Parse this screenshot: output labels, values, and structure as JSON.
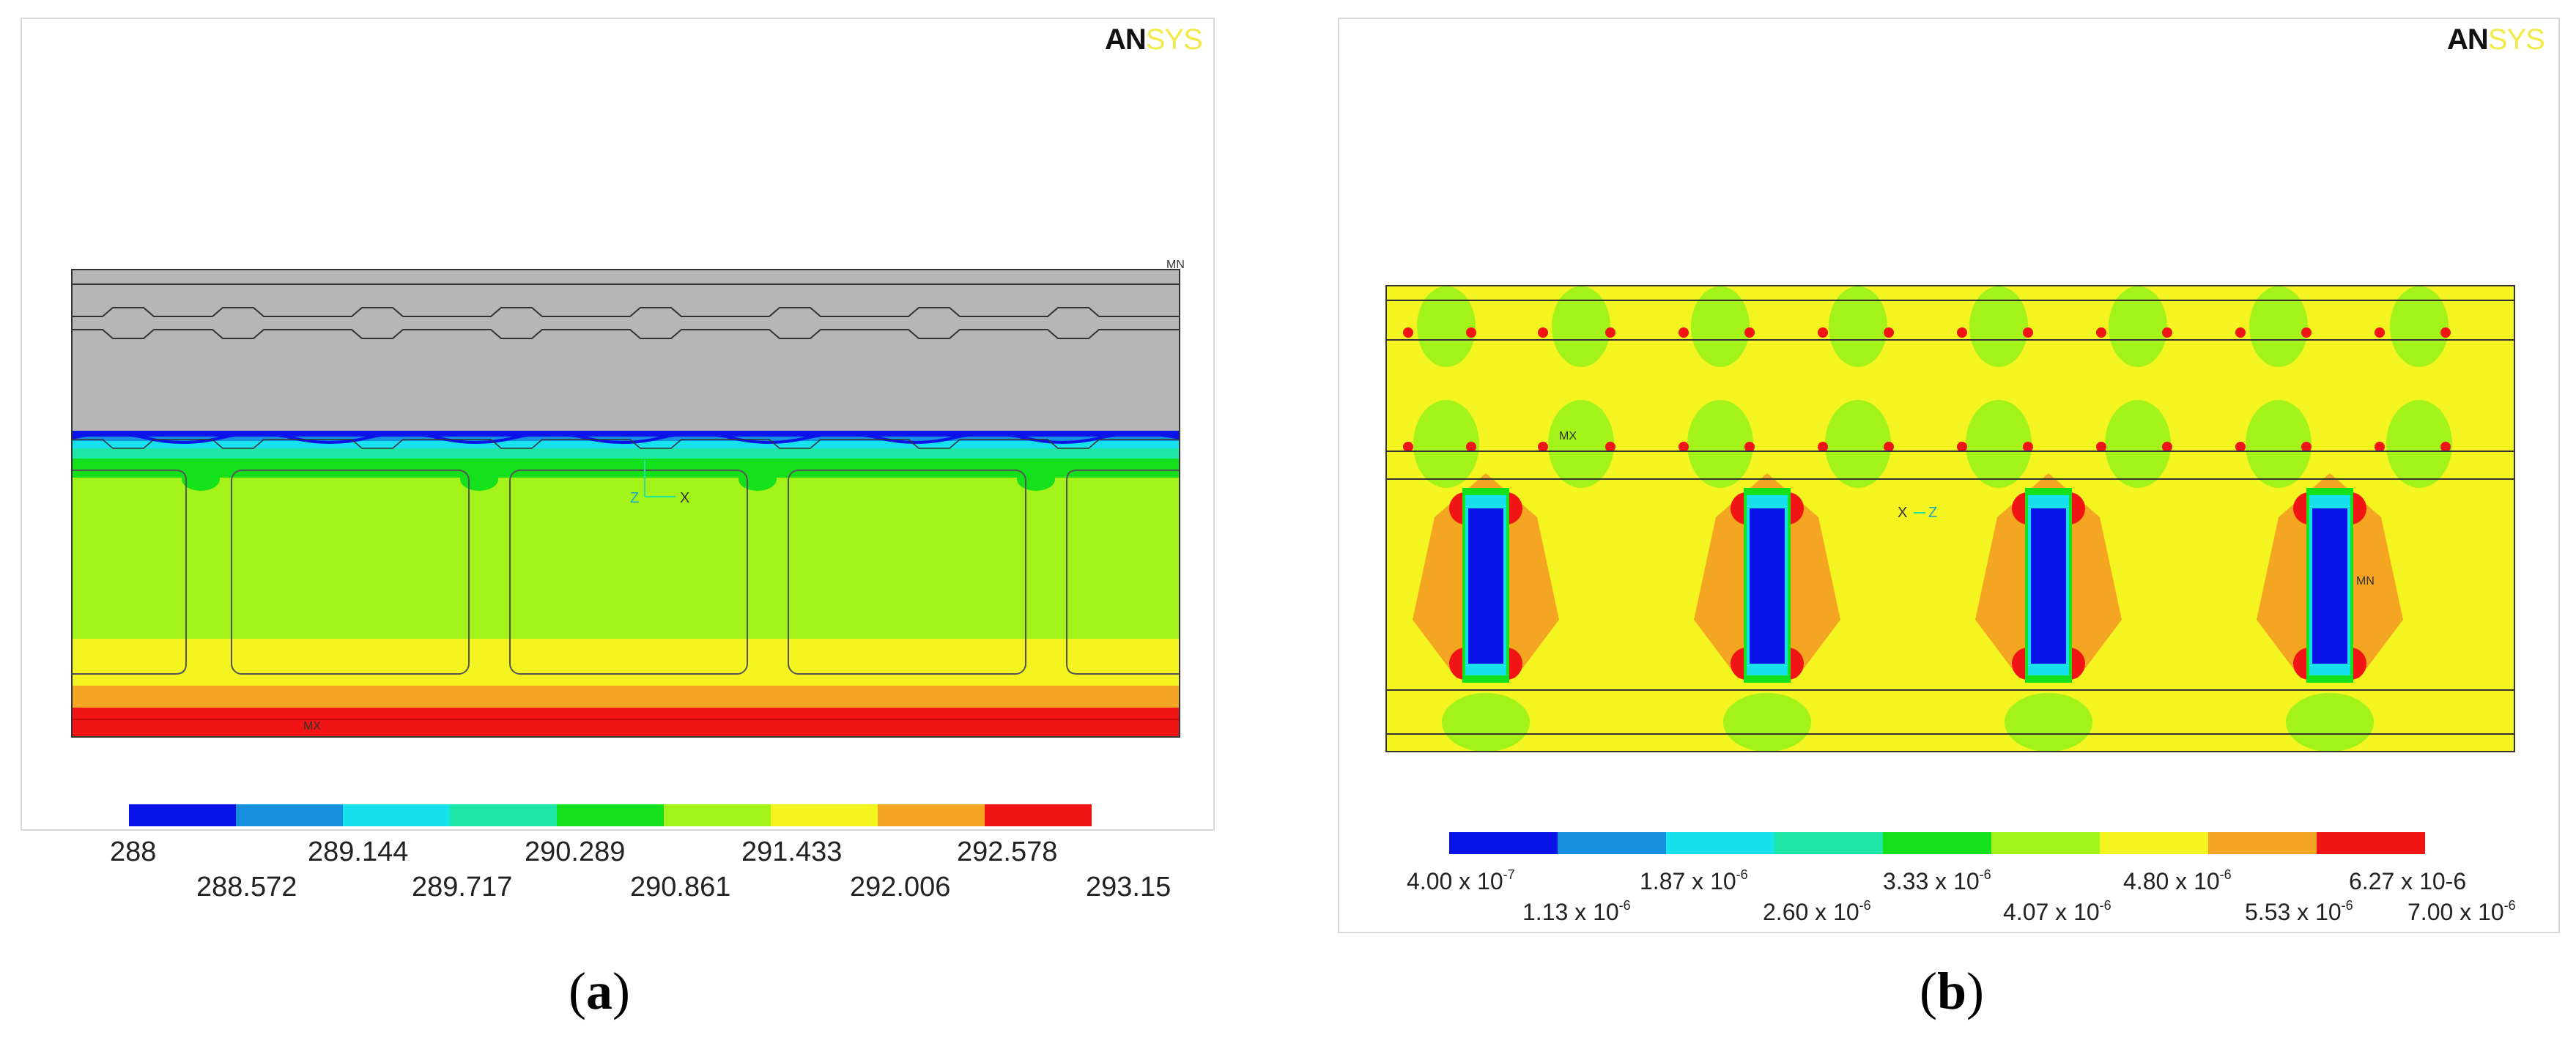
{
  "panels": [
    {
      "id": "a",
      "logo": {
        "left": "AN",
        "right": "SYS"
      },
      "caption": "a",
      "markers": {
        "min": "MN",
        "max": "MX",
        "axis1": "Z",
        "axis2": "X"
      },
      "legend": {
        "colors": [
          "#0a14e8",
          "#168fdf",
          "#18e1ee",
          "#1ee6a6",
          "#14e01c",
          "#a3f21a",
          "#f4f520",
          "#f4a623",
          "#f01414"
        ],
        "top_labels": [
          "288",
          "289.144",
          "290.289",
          "291.433",
          "292.578"
        ],
        "bottom_labels": [
          "288.572",
          "289.717",
          "290.861",
          "292.006",
          "293.15"
        ]
      }
    },
    {
      "id": "b",
      "logo": {
        "left": "AN",
        "right": "SYS"
      },
      "caption": "b",
      "markers": {
        "min": "MN",
        "max": "MX",
        "axis1": "X",
        "axis2": "Z"
      },
      "legend": {
        "colors": [
          "#0a14e8",
          "#168fdf",
          "#18e1ee",
          "#1ee6a6",
          "#14e01c",
          "#a3f21a",
          "#f4f520",
          "#f4a623",
          "#f01414"
        ],
        "top_labels": [
          "4.00 x 10",
          "1.87 x 10",
          "3.33 x 10",
          "4.80 x 10",
          "6.27 x 10-6"
        ],
        "top_exponents": [
          "-7",
          "-6",
          "-6",
          "-6",
          ""
        ],
        "bottom_labels": [
          "1.13 x 10",
          "2.60 x 10",
          "4.07 x 10",
          "5.53 x 10",
          "7.00 x 10"
        ],
        "bottom_exponents": [
          "-6",
          "-6",
          "-6",
          "-6",
          "-6"
        ]
      }
    }
  ]
}
